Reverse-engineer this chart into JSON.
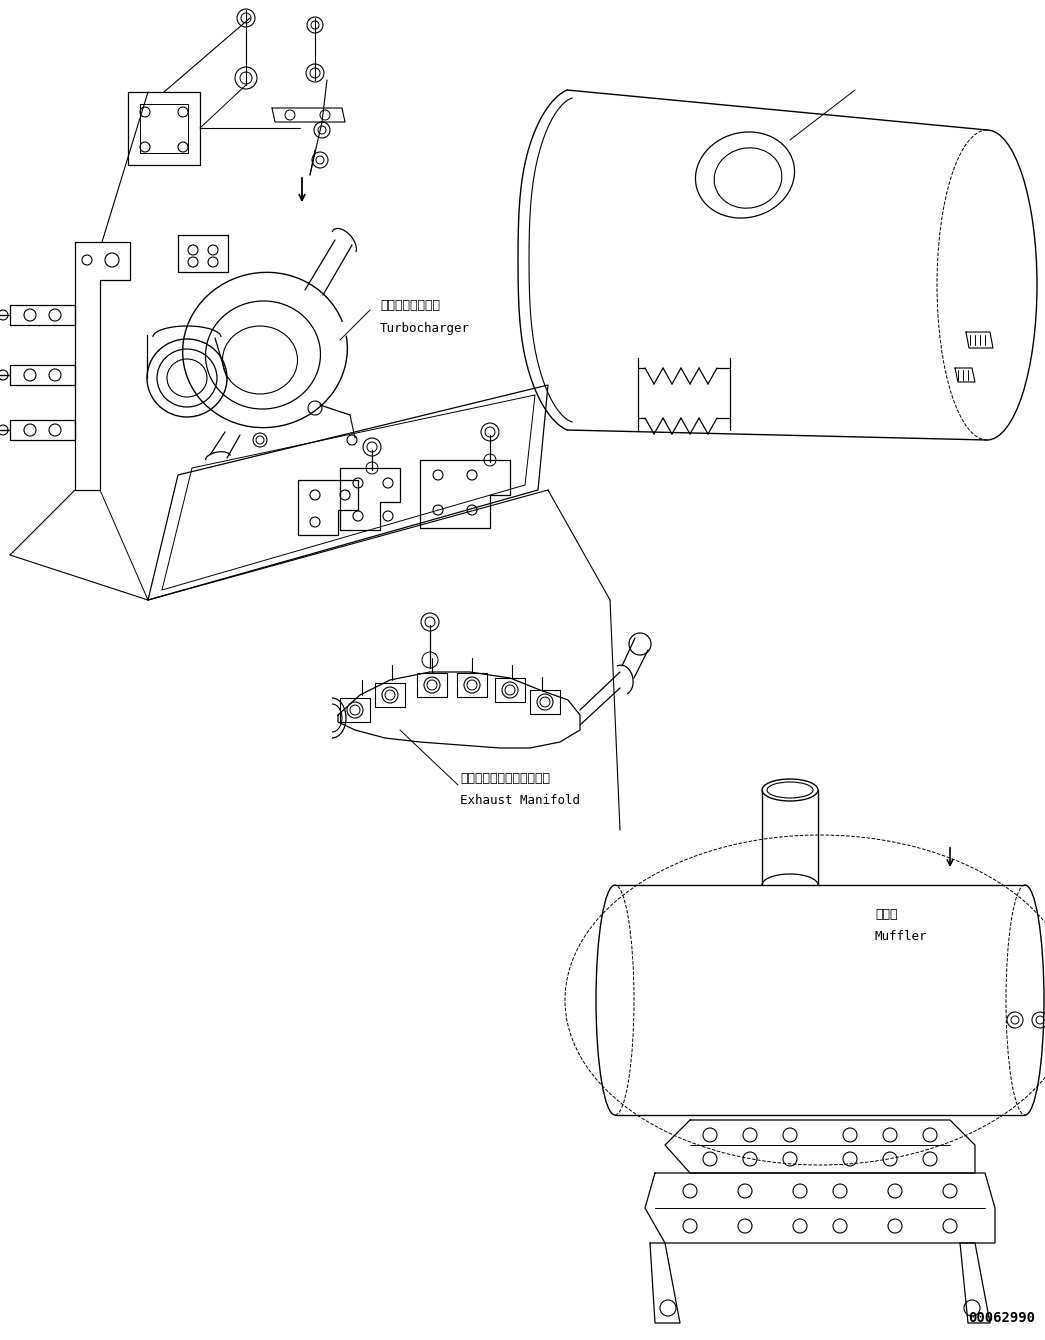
{
  "bg_color": "#ffffff",
  "line_color": "#000000",
  "fig_width": 10.45,
  "fig_height": 13.4,
  "dpi": 100,
  "part_number": "00062990",
  "labels": {
    "turbocharger_jp": "ターボチャージャ",
    "turbocharger_en": "Turbocharger",
    "exhaust_manifold_jp": "エキゾーストマニホールド",
    "exhaust_manifold_en": "Exhaust Manifold",
    "muffler_jp": "マフラ",
    "muffler_en": "Muffler"
  }
}
